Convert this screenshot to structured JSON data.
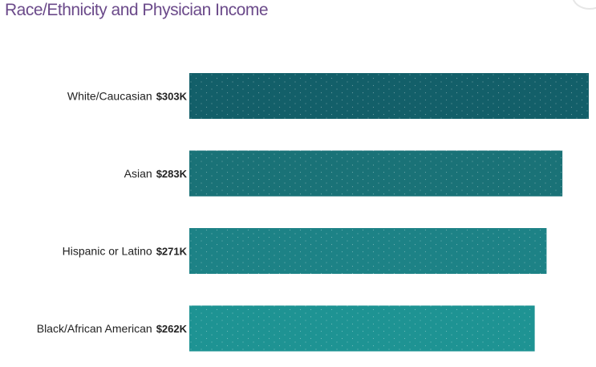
{
  "header": {
    "title": "Race/Ethnicity and Physician Income"
  },
  "chart_data": {
    "type": "bar",
    "orientation": "horizontal",
    "title": "Race/Ethnicity and Physician Income",
    "categories": [
      "White/Caucasian",
      "Asian",
      "Hispanic or Latino",
      "Black/African American"
    ],
    "values": [
      303,
      283,
      271,
      262
    ],
    "value_labels": [
      "$303K",
      "$283K",
      "$271K",
      "$262K"
    ],
    "units": "$K",
    "xlabel": "",
    "ylabel": "",
    "grid": false,
    "legend": "none",
    "bar_colors": [
      "#135f69",
      "#1a7277",
      "#1d8286",
      "#1e9393"
    ],
    "title_color": "#6b4a8a"
  }
}
